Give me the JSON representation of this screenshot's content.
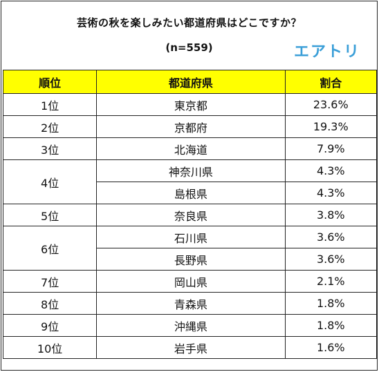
{
  "title": "芸術の秋を楽しみたい都道府県はどこですか？",
  "subtitle": "(n=559)",
  "logo_text": "エアトリ",
  "colors": {
    "header_bg": "#ffff00",
    "logo": "#3b9fd8",
    "border": "#222222"
  },
  "chart_data": {
    "type": "table",
    "title": "芸術の秋を楽しみたい都道府県はどこですか？",
    "subtitle": "(n=559)",
    "columns": [
      "順位",
      "都道府県",
      "割合"
    ],
    "ranks": [
      {
        "rank": "1位",
        "rows": [
          {
            "prefecture": "東京都",
            "share": "23.6%",
            "value": 23.6
          }
        ]
      },
      {
        "rank": "2位",
        "rows": [
          {
            "prefecture": "京都府",
            "share": "19.3%",
            "value": 19.3
          }
        ]
      },
      {
        "rank": "3位",
        "rows": [
          {
            "prefecture": "北海道",
            "share": "7.9%",
            "value": 7.9
          }
        ]
      },
      {
        "rank": "4位",
        "rows": [
          {
            "prefecture": "神奈川県",
            "share": "4.3%",
            "value": 4.3
          },
          {
            "prefecture": "島根県",
            "share": "4.3%",
            "value": 4.3
          }
        ]
      },
      {
        "rank": "5位",
        "rows": [
          {
            "prefecture": "奈良県",
            "share": "3.8%",
            "value": 3.8
          }
        ]
      },
      {
        "rank": "6位",
        "rows": [
          {
            "prefecture": "石川県",
            "share": "3.6%",
            "value": 3.6
          },
          {
            "prefecture": "長野県",
            "share": "3.6%",
            "value": 3.6
          }
        ]
      },
      {
        "rank": "7位",
        "rows": [
          {
            "prefecture": "岡山県",
            "share": "2.1%",
            "value": 2.1
          }
        ]
      },
      {
        "rank": "8位",
        "rows": [
          {
            "prefecture": "青森県",
            "share": "1.8%",
            "value": 1.8
          }
        ]
      },
      {
        "rank": "9位",
        "rows": [
          {
            "prefecture": "沖縄県",
            "share": "1.8%",
            "value": 1.8
          }
        ]
      },
      {
        "rank": "10位",
        "rows": [
          {
            "prefecture": "岩手県",
            "share": "1.6%",
            "value": 1.6
          }
        ]
      }
    ]
  }
}
